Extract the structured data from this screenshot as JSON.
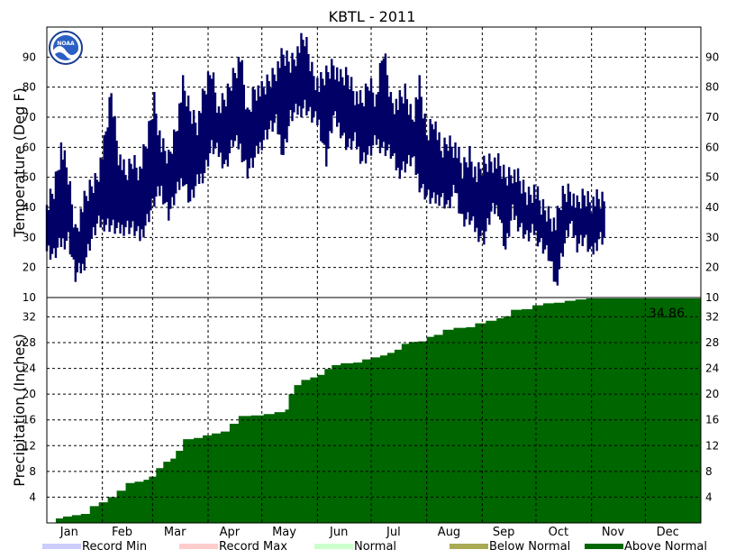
{
  "chart_data": [
    {
      "type": "bar",
      "panel": "temperature",
      "title": "KBTL - 2011",
      "ylabel": "Temperature (Deg F)",
      "ylim": [
        10,
        100
      ],
      "yticks": [
        10,
        20,
        30,
        40,
        50,
        60,
        70,
        80,
        90
      ],
      "grid": true,
      "series_color": "#000066",
      "daily_range_weekly_samples": {
        "note_days": "day-of-year, low, high",
        "points": [
          [
            1,
            26,
            40
          ],
          [
            5,
            24,
            46
          ],
          [
            9,
            28,
            60
          ],
          [
            13,
            30,
            50
          ],
          [
            17,
            17,
            32
          ],
          [
            21,
            20,
            40
          ],
          [
            25,
            28,
            46
          ],
          [
            29,
            34,
            50
          ],
          [
            33,
            35,
            60
          ],
          [
            37,
            34,
            78
          ],
          [
            41,
            32,
            58
          ],
          [
            45,
            34,
            50
          ],
          [
            49,
            33,
            56
          ],
          [
            53,
            30,
            52
          ],
          [
            57,
            36,
            62
          ],
          [
            61,
            42,
            76
          ],
          [
            65,
            46,
            60
          ],
          [
            69,
            38,
            56
          ],
          [
            73,
            44,
            66
          ],
          [
            77,
            50,
            80
          ],
          [
            81,
            42,
            72
          ],
          [
            85,
            48,
            68
          ],
          [
            89,
            52,
            78
          ],
          [
            93,
            60,
            86
          ],
          [
            97,
            58,
            72
          ],
          [
            101,
            54,
            76
          ],
          [
            105,
            62,
            84
          ],
          [
            109,
            60,
            90
          ],
          [
            113,
            52,
            70
          ],
          [
            117,
            56,
            80
          ],
          [
            121,
            62,
            78
          ],
          [
            125,
            66,
            82
          ],
          [
            129,
            68,
            86
          ],
          [
            133,
            58,
            90
          ],
          [
            137,
            70,
            88
          ],
          [
            141,
            72,
            92
          ],
          [
            145,
            74,
            96
          ],
          [
            149,
            70,
            86
          ],
          [
            153,
            68,
            80
          ],
          [
            157,
            56,
            84
          ],
          [
            161,
            70,
            88
          ],
          [
            165,
            66,
            82
          ],
          [
            169,
            60,
            84
          ],
          [
            173,
            62,
            78
          ],
          [
            177,
            56,
            74
          ],
          [
            181,
            58,
            82
          ],
          [
            185,
            62,
            76
          ],
          [
            189,
            60,
            92
          ],
          [
            193,
            58,
            76
          ],
          [
            197,
            52,
            74
          ],
          [
            201,
            54,
            78
          ],
          [
            205,
            56,
            70
          ],
          [
            209,
            48,
            80
          ],
          [
            213,
            44,
            64
          ],
          [
            217,
            42,
            70
          ],
          [
            221,
            44,
            58
          ],
          [
            225,
            40,
            62
          ],
          [
            229,
            46,
            60
          ],
          [
            233,
            36,
            52
          ],
          [
            237,
            36,
            58
          ],
          [
            241,
            32,
            50
          ],
          [
            245,
            30,
            54
          ],
          [
            249,
            38,
            56
          ],
          [
            253,
            40,
            54
          ],
          [
            257,
            26,
            50
          ],
          [
            261,
            38,
            52
          ],
          [
            265,
            34,
            48
          ],
          [
            269,
            30,
            44
          ],
          [
            273,
            32,
            46
          ],
          [
            277,
            28,
            40
          ],
          [
            281,
            24,
            38
          ],
          [
            285,
            14,
            34
          ],
          [
            289,
            26,
            44
          ],
          [
            293,
            34,
            46
          ],
          [
            297,
            28,
            40
          ],
          [
            301,
            30,
            44
          ],
          [
            305,
            24,
            42
          ],
          [
            309,
            30,
            42
          ]
        ]
      }
    },
    {
      "type": "area",
      "panel": "precipitation",
      "ylabel": "Precipitation (Inches)",
      "ylim": [
        0,
        35
      ],
      "yticks": [
        4,
        8,
        12,
        16,
        20,
        24,
        28,
        32
      ],
      "grid": true,
      "series_color": "#006600",
      "total_label": "34.86",
      "cumulative_points": [
        [
          1,
          0.0
        ],
        [
          5,
          0.0
        ],
        [
          6,
          0.7
        ],
        [
          10,
          1.0
        ],
        [
          15,
          1.2
        ],
        [
          20,
          1.4
        ],
        [
          25,
          2.6
        ],
        [
          30,
          3.2
        ],
        [
          35,
          4.0
        ],
        [
          40,
          5.0
        ],
        [
          45,
          6.2
        ],
        [
          50,
          6.4
        ],
        [
          55,
          6.7
        ],
        [
          58,
          7.2
        ],
        [
          62,
          8.5
        ],
        [
          66,
          9.5
        ],
        [
          70,
          10.0
        ],
        [
          73,
          11.2
        ],
        [
          77,
          13.0
        ],
        [
          83,
          13.2
        ],
        [
          88,
          13.6
        ],
        [
          93,
          13.9
        ],
        [
          98,
          14.2
        ],
        [
          103,
          15.4
        ],
        [
          108,
          16.6
        ],
        [
          115,
          16.7
        ],
        [
          122,
          16.9
        ],
        [
          128,
          17.2
        ],
        [
          134,
          17.6
        ],
        [
          136,
          20.0
        ],
        [
          139,
          21.4
        ],
        [
          143,
          22.2
        ],
        [
          148,
          22.6
        ],
        [
          152,
          23.0
        ],
        [
          156,
          23.9
        ],
        [
          160,
          24.5
        ],
        [
          165,
          24.8
        ],
        [
          172,
          24.9
        ],
        [
          177,
          25.4
        ],
        [
          182,
          25.7
        ],
        [
          187,
          26.0
        ],
        [
          191,
          26.4
        ],
        [
          195,
          26.9
        ],
        [
          199,
          27.8
        ],
        [
          203,
          28.1
        ],
        [
          208,
          28.2
        ],
        [
          213,
          28.9
        ],
        [
          217,
          29.2
        ],
        [
          222,
          30.0
        ],
        [
          228,
          30.3
        ],
        [
          235,
          30.4
        ],
        [
          240,
          31.0
        ],
        [
          246,
          31.4
        ],
        [
          252,
          31.8
        ],
        [
          256,
          32.1
        ],
        [
          260,
          33.1
        ],
        [
          266,
          33.2
        ],
        [
          272,
          33.8
        ],
        [
          278,
          34.1
        ],
        [
          284,
          34.2
        ],
        [
          290,
          34.5
        ],
        [
          296,
          34.7
        ],
        [
          302,
          34.86
        ],
        [
          365,
          34.86
        ]
      ]
    }
  ],
  "x_axis": {
    "months": [
      "Jan",
      "Feb",
      "Mar",
      "Apr",
      "May",
      "Jun",
      "Jul",
      "Aug",
      "Sep",
      "Oct",
      "Nov",
      "Dec"
    ],
    "month_start_days": [
      1,
      32,
      60,
      91,
      121,
      152,
      182,
      213,
      244,
      274,
      305,
      335
    ]
  },
  "legend": {
    "placement": "bottom",
    "items": [
      {
        "label": "Record Min",
        "color": "#ccccff"
      },
      {
        "label": "Record Max",
        "color": "#ffcccc"
      },
      {
        "label": "Normal",
        "color": "#ccffcc"
      },
      {
        "label": "Below Normal",
        "color": "#aaaa55"
      },
      {
        "label": "Above Normal",
        "color": "#006600"
      }
    ]
  },
  "logo": {
    "text": "NOAA",
    "icon": "noaa-logo-icon"
  }
}
